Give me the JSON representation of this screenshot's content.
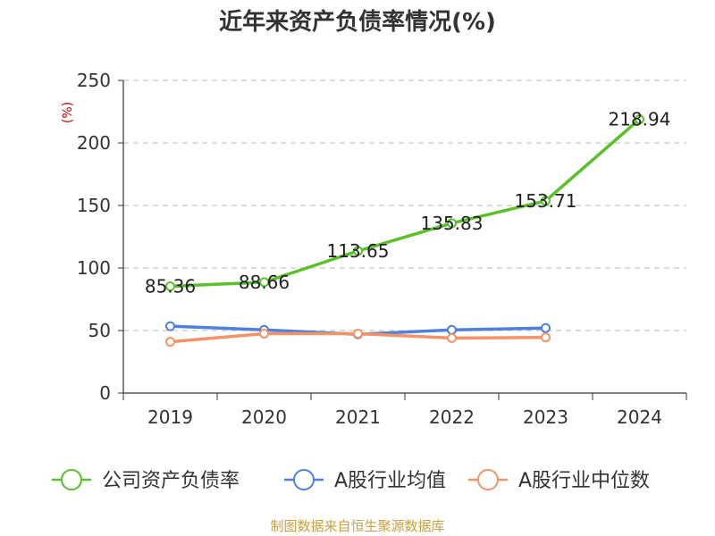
{
  "chart_data": {
    "type": "line",
    "title": "近年来资产负债率情况(%)",
    "ylabel": "(%)",
    "xlabel": "",
    "categories": [
      "2019",
      "2020",
      "2021",
      "2022",
      "2023",
      "2024"
    ],
    "ylim": [
      0,
      250
    ],
    "yticks": [
      0,
      50,
      100,
      150,
      200,
      250
    ],
    "grid": "horizontal-dashed",
    "legend_position": "bottom",
    "series": [
      {
        "name": "公司资产负债率",
        "color": "#5bc12a",
        "values": [
          85.36,
          88.66,
          113.65,
          135.83,
          153.71,
          218.94
        ],
        "labels": [
          "85.36",
          "88.66",
          "113.65",
          "135.83",
          "153.71",
          "218.94"
        ]
      },
      {
        "name": "A股行业均值",
        "color": "#4f80dc",
        "values": [
          53.5,
          50.5,
          47.0,
          50.5,
          52.0,
          null
        ]
      },
      {
        "name": "A股行业中位数",
        "color": "#f39366",
        "values": [
          41.0,
          47.5,
          47.5,
          44.0,
          44.5,
          null
        ]
      }
    ]
  },
  "source": "制图数据来自恒生聚源数据库"
}
